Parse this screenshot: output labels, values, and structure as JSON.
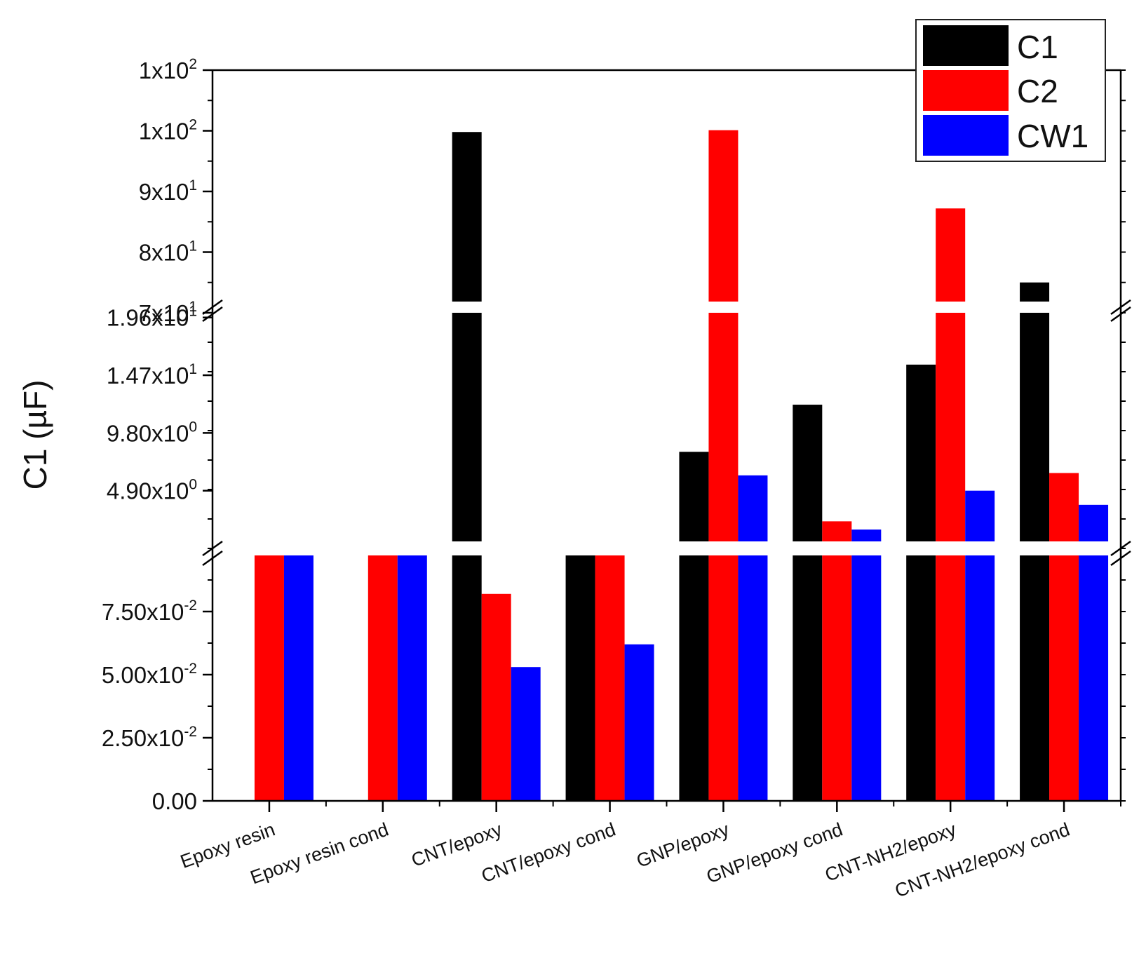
{
  "chart_data": {
    "type": "bar",
    "title": "",
    "xlabel": "",
    "ylabel": "C1 (µF)",
    "broken_axis": true,
    "categories": [
      "Epoxy resin",
      "Epoxy resin cond",
      "CNT/epoxy",
      "CNT/epoxy cond",
      "GNP/epoxy",
      "GNP/epoxy cond",
      "CNT-NH2/epoxy",
      "CNT-NH2/epoxy cond"
    ],
    "series": [
      {
        "name": "C1",
        "color": "#000000",
        "values": [
          0,
          0,
          99.8,
          0.118,
          8.2,
          12.2,
          15.6,
          75.0
        ]
      },
      {
        "name": "C2",
        "color": "#ff0000",
        "values": [
          0.115,
          0.123,
          0.082,
          0.115,
          100.1,
          2.3,
          87.2,
          6.4
        ]
      },
      {
        "name": "CW1",
        "color": "#0000ff",
        "values": [
          0.1,
          0.114,
          0.053,
          0.062,
          6.2,
          1.6,
          4.9,
          3.7
        ]
      }
    ],
    "segments": [
      {
        "ylim": [
          0,
          0.1
        ],
        "ticks": [
          0,
          0.025,
          0.05,
          0.075
        ],
        "tick_labels": [
          {
            "mant": "0.00",
            "exp": ""
          },
          {
            "mant": "2.50x10",
            "exp": "-2"
          },
          {
            "mant": "5.00x10",
            "exp": "-2"
          },
          {
            "mant": "7.50x10",
            "exp": "-2"
          }
        ]
      },
      {
        "ylim": [
          0,
          20
        ],
        "ticks": [
          4.9,
          9.8,
          14.7,
          19.6
        ],
        "tick_labels": [
          {
            "mant": "4.90x10",
            "exp": "0"
          },
          {
            "mant": "9.80x10",
            "exp": "0"
          },
          {
            "mant": "1.47x10",
            "exp": "1"
          },
          {
            "mant": "1.96x10",
            "exp": "1"
          }
        ]
      },
      {
        "ylim": [
          70,
          110
        ],
        "ticks": [
          70,
          80,
          90,
          100,
          110
        ],
        "tick_labels": [
          {
            "mant": "7x10",
            "exp": "1"
          },
          {
            "mant": "8x10",
            "exp": "1"
          },
          {
            "mant": "9x10",
            "exp": "1"
          },
          {
            "mant": "1x10",
            "exp": "2"
          },
          {
            "mant": "1x10",
            "exp": "2"
          }
        ]
      }
    ],
    "legend": {
      "position": "top-right",
      "entries": [
        "C1",
        "C2",
        "CW1"
      ]
    }
  }
}
